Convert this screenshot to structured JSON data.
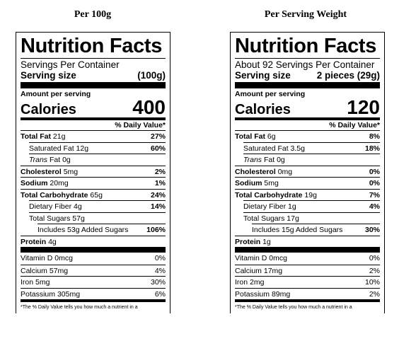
{
  "labels": [
    {
      "heading": "Per 100g",
      "title": "Nutrition Facts",
      "servings": "Servings Per Container",
      "serving_size_label": "Serving size",
      "serving_size": "(100g)",
      "amount_per_serving": "Amount per serving",
      "calories_label": "Calories",
      "calories": "400",
      "dv_header": "% Daily Value*",
      "rows": [
        {
          "label": "Total Fat",
          "amount": "21g",
          "dv": "27%",
          "bold": true,
          "indent": 0
        },
        {
          "label": "Saturated Fat",
          "amount": "12g",
          "dv": "60%",
          "bold": false,
          "indent": 1
        },
        {
          "prefix": "Trans",
          "label": "Fat",
          "amount": "0g",
          "bold": false,
          "indent": 1
        },
        {
          "label": "Cholesterol",
          "amount": "5mg",
          "dv": "2%",
          "bold": true,
          "indent": 0
        },
        {
          "label": "Sodium",
          "amount": "20mg",
          "dv": "1%",
          "bold": true,
          "indent": 0
        },
        {
          "label": "Total Carbohydrate",
          "amount": "65g",
          "dv": "24%",
          "bold": true,
          "indent": 0
        },
        {
          "label": "Dietary Fiber",
          "amount": "4g",
          "dv": "14%",
          "bold": false,
          "indent": 1
        },
        {
          "label": "Total Sugars",
          "amount": "57g",
          "bold": false,
          "indent": 1
        },
        {
          "label": "Includes 53g Added Sugars",
          "dv": "106%",
          "bold": false,
          "indent": 2
        },
        {
          "label": "Protein",
          "amount": "4g",
          "bold": true,
          "indent": 0
        }
      ],
      "vitamins": [
        {
          "label": "Vitamin D",
          "amount": "0mcg",
          "dv": "0%"
        },
        {
          "label": "Calcium",
          "amount": "57mg",
          "dv": "4%"
        },
        {
          "label": "Iron",
          "amount": "5mg",
          "dv": "30%"
        },
        {
          "label": "Potassium",
          "amount": "305mg",
          "dv": "6%"
        }
      ],
      "footnote": "*The % Daily Value tells you how much a nutrient in a"
    },
    {
      "heading": "Per Serving Weight",
      "title": "Nutrition Facts",
      "servings": "About 92 Servings Per Container",
      "serving_size_label": "Serving size",
      "serving_size": "2 pieces (29g)",
      "amount_per_serving": "Amount per serving",
      "calories_label": "Calories",
      "calories": "120",
      "dv_header": "% Daily Value*",
      "rows": [
        {
          "label": "Total Fat",
          "amount": "6g",
          "dv": "8%",
          "bold": true,
          "indent": 0
        },
        {
          "label": "Saturated Fat",
          "amount": "3.5g",
          "dv": "18%",
          "bold": false,
          "indent": 1
        },
        {
          "prefix": "Trans",
          "label": "Fat",
          "amount": "0g",
          "bold": false,
          "indent": 1
        },
        {
          "label": "Cholesterol",
          "amount": "0mg",
          "dv": "0%",
          "bold": true,
          "indent": 0
        },
        {
          "label": "Sodium",
          "amount": "5mg",
          "dv": "0%",
          "bold": true,
          "indent": 0
        },
        {
          "label": "Total Carbohydrate",
          "amount": "19g",
          "dv": "7%",
          "bold": true,
          "indent": 0
        },
        {
          "label": "Dietary Fiber",
          "amount": "1g",
          "dv": "4%",
          "bold": false,
          "indent": 1
        },
        {
          "label": "Total Sugars",
          "amount": "17g",
          "bold": false,
          "indent": 1
        },
        {
          "label": "Includes 15g Added Sugars",
          "dv": "30%",
          "bold": false,
          "indent": 2
        },
        {
          "label": "Protein",
          "amount": "1g",
          "bold": true,
          "indent": 0
        }
      ],
      "vitamins": [
        {
          "label": "Vitamin D",
          "amount": "0mcg",
          "dv": "0%"
        },
        {
          "label": "Calcium",
          "amount": "17mg",
          "dv": "2%"
        },
        {
          "label": "Iron",
          "amount": "2mg",
          "dv": "10%"
        },
        {
          "label": "Potassium",
          "amount": "89mg",
          "dv": "2%"
        }
      ],
      "footnote": "*The % Daily Value tells you how much a nutrient in a"
    }
  ]
}
